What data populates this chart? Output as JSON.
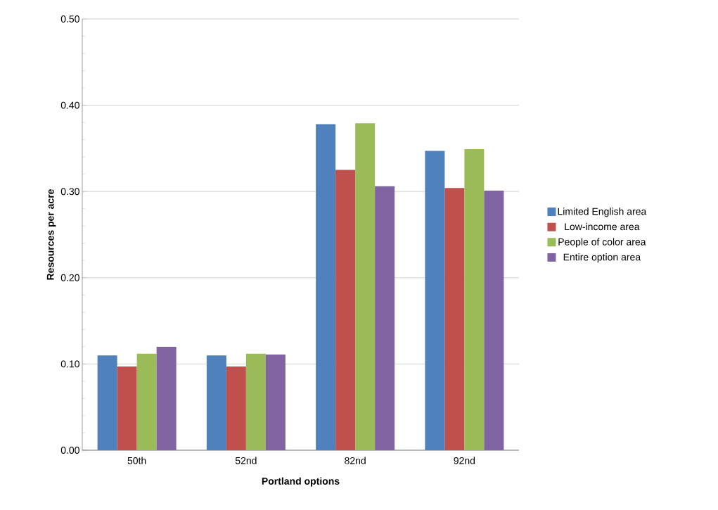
{
  "chart_data": {
    "type": "bar",
    "xlabel": "Portland options",
    "ylabel": "Resources per acre",
    "categories": [
      "50th",
      "52nd",
      "82nd",
      "92nd"
    ],
    "series": [
      {
        "name": "Limited English area",
        "color": "#4f81bd",
        "values": [
          0.11,
          0.11,
          0.378,
          0.347
        ]
      },
      {
        "name": "Low-income area",
        "color": "#c0504d",
        "values": [
          0.097,
          0.097,
          0.325,
          0.304
        ]
      },
      {
        "name": "People of color area",
        "color": "#9bbb59",
        "values": [
          0.112,
          0.112,
          0.379,
          0.349
        ]
      },
      {
        "name": "Entire option area",
        "color": "#8064a2",
        "values": [
          0.12,
          0.111,
          0.306,
          0.301
        ]
      }
    ],
    "ylim": [
      0,
      0.5
    ],
    "yticks": [
      {
        "value": 0,
        "label": "0.00"
      },
      {
        "value": 0.1,
        "label": "0.10"
      },
      {
        "value": 0.2,
        "label": "0.20"
      },
      {
        "value": 0.3,
        "label": "0.30"
      },
      {
        "value": 0.4,
        "label": "0.40"
      },
      {
        "value": 0.5,
        "label": "0.50"
      }
    ],
    "grid": "y",
    "legend": "right"
  }
}
